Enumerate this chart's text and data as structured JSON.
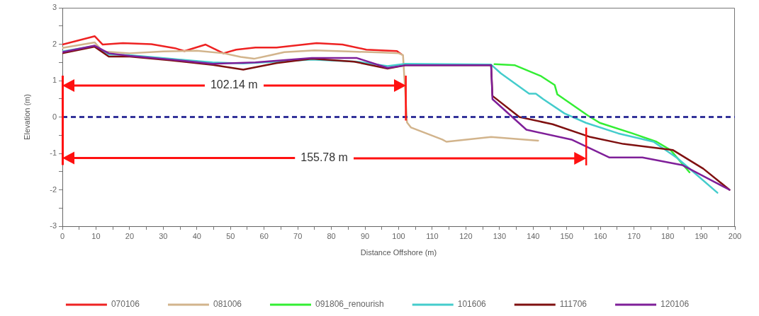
{
  "chart_data": {
    "type": "line",
    "xlabel": "Distance Offshore (m)",
    "ylabel": "Elevation (m)",
    "xlim": [
      0,
      200
    ],
    "ylim": [
      -3,
      3
    ],
    "xticks": [
      0,
      {
        "value": 5,
        "label": null
      },
      10,
      {
        "value": 15,
        "label": null
      },
      20,
      {
        "value": 25,
        "label": null
      },
      30,
      {
        "value": 35,
        "label": null
      },
      40,
      {
        "value": 45,
        "label": null
      },
      50,
      {
        "value": 55,
        "label": null
      },
      60,
      {
        "value": 65,
        "label": null
      },
      70,
      {
        "value": 75,
        "label": null
      },
      80,
      {
        "value": 85,
        "label": null
      },
      90,
      {
        "value": 95,
        "label": null
      },
      100,
      {
        "value": 105,
        "label": null
      },
      110,
      {
        "value": 115,
        "label": null
      },
      120,
      {
        "value": 125,
        "label": null
      },
      130,
      {
        "value": 135,
        "label": null
      },
      140,
      {
        "value": 145,
        "label": null
      },
      150,
      {
        "value": 155,
        "label": null
      },
      160,
      {
        "value": 165,
        "label": null
      },
      170,
      {
        "value": 175,
        "label": null
      },
      180,
      {
        "value": 185,
        "label": null
      },
      190,
      {
        "value": 195,
        "label": null
      },
      200
    ],
    "yticks": [
      -3,
      {
        "value": -2.5,
        "label": null
      },
      -2,
      {
        "value": -1.5,
        "label": null
      },
      -1,
      {
        "value": -0.5,
        "label": null
      },
      0,
      {
        "value": 0.5,
        "label": null
      },
      1,
      {
        "value": 1.5,
        "label": null
      },
      2,
      {
        "value": 2.5,
        "label": null
      },
      3
    ],
    "grid": false,
    "legend": "bottom",
    "line_style": "solid",
    "ref_lines": [
      {
        "axis": "y",
        "value": 0,
        "color": "#333399",
        "line_style": "dashed"
      },
      {
        "axis": "x",
        "value": 102.14,
        "color": "#ff1010"
      },
      {
        "axis": "x",
        "value": 155.78,
        "color": "#ff1010"
      }
    ],
    "annotations": [
      "102.14 m",
      "155.78 m"
    ],
    "series": [
      {
        "name": "070106",
        "color": "#ee2222",
        "x": [
          0,
          9.6,
          12,
          18,
          26.5,
          33.5,
          36.3,
          42.6,
          47.9,
          51.7,
          57.4,
          63.7,
          75.6,
          83.3,
          90.4,
          99.5,
          100.9
        ],
        "values": [
          1.99,
          2.22,
          1.99,
          2.03,
          2.0,
          1.89,
          1.81,
          1.99,
          1.75,
          1.85,
          1.91,
          1.91,
          2.03,
          1.99,
          1.85,
          1.81,
          1.72
        ]
      },
      {
        "name": "081006",
        "color": "#d2b48c",
        "x": [
          0,
          9.6,
          12,
          20,
          30,
          40,
          48,
          53,
          57,
          62,
          66,
          75,
          85,
          95,
          100,
          101.3,
          102.5,
          103.7,
          113,
          114.2,
          127.5,
          141.5
        ],
        "values": [
          1.9,
          2.05,
          1.8,
          1.75,
          1.8,
          1.82,
          1.75,
          1.65,
          1.6,
          1.7,
          1.78,
          1.83,
          1.8,
          1.77,
          1.75,
          1.7,
          -0.15,
          -0.29,
          -0.62,
          -0.68,
          -0.55,
          -0.65
        ]
      },
      {
        "name": "091806_renourish",
        "color": "#33ee33",
        "x": [
          128.5,
          134.6,
          142.2,
          146.4,
          147.2,
          156.3,
          159.8,
          169.5,
          176.7,
          180.9,
          186.5
        ],
        "values": [
          1.45,
          1.42,
          1.13,
          0.88,
          0.62,
          0.04,
          -0.16,
          -0.45,
          -0.68,
          -0.91,
          -1.52
        ]
      },
      {
        "name": "101606",
        "color": "#44cccc",
        "x": [
          0,
          9.6,
          13.8,
          20,
          32,
          44.7,
          53.8,
          63.7,
          74.2,
          87.6,
          96.7,
          102,
          127.5,
          130.4,
          138.8,
          140.8,
          143,
          149.3,
          155.7,
          165.3,
          175.8,
          182.9,
          194.8
        ],
        "values": [
          1.8,
          1.95,
          1.72,
          1.7,
          1.6,
          1.5,
          1.47,
          1.52,
          1.58,
          1.52,
          1.4,
          1.46,
          1.44,
          1.2,
          0.64,
          0.64,
          0.49,
          0.1,
          -0.16,
          -0.45,
          -0.68,
          -1.13,
          -2.08
        ]
      },
      {
        "name": "111706",
        "color": "#7f1010",
        "x": [
          0,
          9.6,
          13.8,
          20,
          32,
          44.7,
          53.8,
          63.7,
          74.2,
          86.8,
          96.7,
          102,
          127.5,
          127.9,
          135.9,
          145.8,
          157,
          166.8,
          181.6,
          190.6,
          198.4
        ],
        "values": [
          1.75,
          1.93,
          1.66,
          1.66,
          1.56,
          1.43,
          1.3,
          1.48,
          1.6,
          1.52,
          1.33,
          1.42,
          1.42,
          0.58,
          0.0,
          -0.2,
          -0.55,
          -0.74,
          -0.91,
          -1.42,
          -2.0
        ]
      },
      {
        "name": "120106",
        "color": "#7f1f99",
        "x": [
          0,
          9.6,
          13.8,
          20,
          32,
          44.7,
          57.4,
          74.2,
          87.6,
          96.7,
          102,
          127.5,
          127.9,
          138,
          151.4,
          162.6,
          172.5,
          184.3,
          198.4
        ],
        "values": [
          1.78,
          1.96,
          1.75,
          1.68,
          1.58,
          1.46,
          1.5,
          1.62,
          1.62,
          1.35,
          1.42,
          1.42,
          0.49,
          -0.35,
          -0.62,
          -1.11,
          -1.11,
          -1.32,
          -2.0
        ]
      }
    ]
  }
}
